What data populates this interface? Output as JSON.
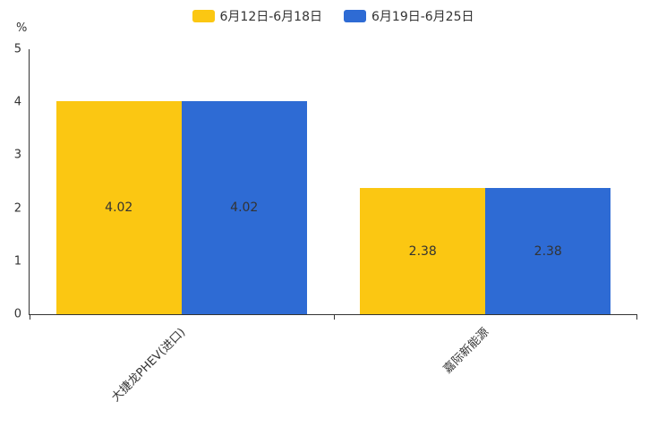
{
  "chart_data": {
    "type": "bar",
    "title": "",
    "categories": [
      "大捷龙PHEV(进口)",
      "嘉际新能源"
    ],
    "series": [
      {
        "name": "6月12日-6月18日",
        "color": "#FBC712",
        "values": [
          4.02,
          2.38
        ]
      },
      {
        "name": "6月19日-6月25日",
        "color": "#2E6BD4",
        "values": [
          4.02,
          2.38
        ]
      }
    ],
    "xlabel": "",
    "ylabel": "%",
    "ylim": [
      0,
      5
    ],
    "yticks": [
      0,
      1,
      2,
      3,
      4,
      5
    ],
    "grid": false,
    "legend_position": "top",
    "value_label_decimals": 2,
    "category_label_rotation_deg": 45
  }
}
